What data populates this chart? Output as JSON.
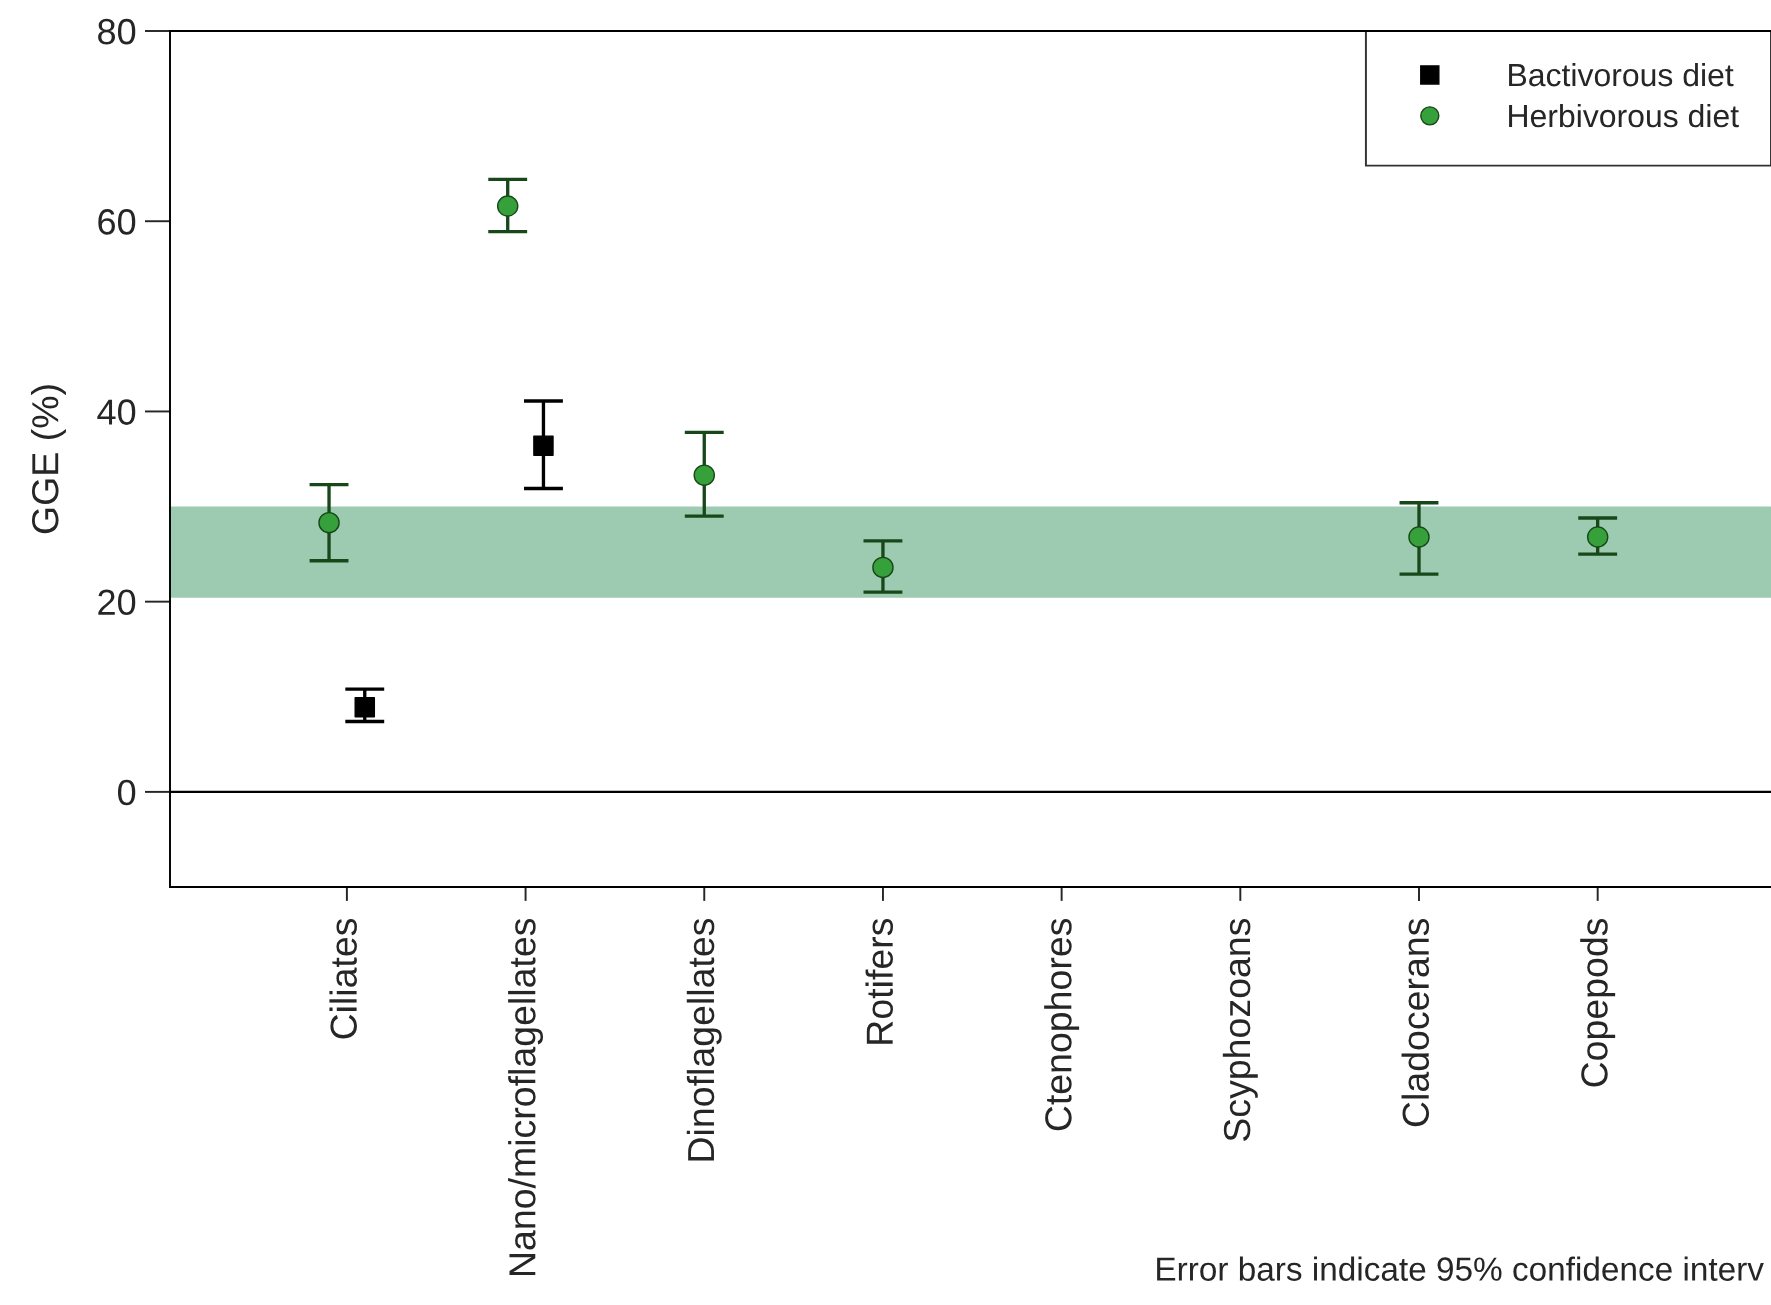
{
  "chart_data": {
    "type": "scatter",
    "ylabel": "GGE (%)",
    "categories": [
      "Ciliates",
      "Nano/microflagellates",
      "Dinoflagellates",
      "Rotifers",
      "Ctenophores",
      "Scyphozoans",
      "Cladocerans",
      "Copepods"
    ],
    "series": [
      {
        "name": "Bactivorous diet",
        "color": "#000000",
        "marker": "square",
        "values": [
          8.9,
          36.4,
          null,
          null,
          null,
          null,
          null,
          null
        ],
        "errors": [
          [
            7.4,
            10.8
          ],
          [
            31.9,
            41.1
          ],
          null,
          null,
          null,
          null,
          null,
          null
        ]
      },
      {
        "name": "Herbivorous diet",
        "color": "#36a03a",
        "marker": "circle",
        "values": [
          28.3,
          61.6,
          33.3,
          23.6,
          null,
          null,
          26.8,
          26.8
        ],
        "errors": [
          [
            24.3,
            32.3
          ],
          [
            58.9,
            64.4
          ],
          [
            29.0,
            37.8
          ],
          [
            21.0,
            26.4
          ],
          null,
          null,
          [
            22.9,
            30.4
          ],
          [
            25.0,
            28.8
          ]
        ]
      }
    ],
    "ylim": [
      -10,
      80
    ],
    "yticks": [
      0,
      20,
      40,
      60,
      80
    ],
    "ref_lines": [
      {
        "axis": "y",
        "value": 0,
        "color": "#000000"
      }
    ],
    "bands": [
      {
        "axis": "y",
        "from": 20.4,
        "to": 30,
        "color": "#9ccbb1"
      }
    ],
    "legend": "top right",
    "annotations": [
      "Error bars indicate 95% confidence interv"
    ]
  }
}
